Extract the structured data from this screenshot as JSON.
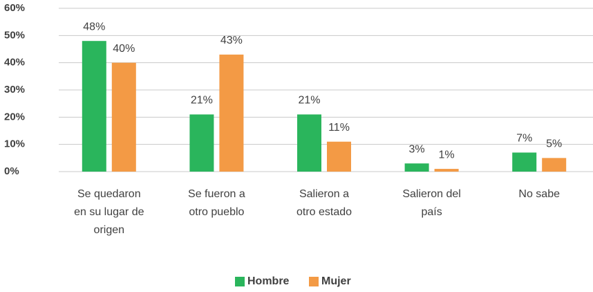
{
  "chart_data": {
    "type": "bar",
    "categories": [
      "Se quedaron en su lugar de origen",
      "Se fueron a otro pueblo",
      "Salieron a otro estado",
      "Salieron del país",
      "No sabe"
    ],
    "series": [
      {
        "name": "Hombre",
        "color": "#2ab55c",
        "values": [
          48,
          21,
          21,
          3,
          7
        ],
        "value_labels": [
          "48%",
          "21%",
          "21%",
          "3%",
          "7%"
        ]
      },
      {
        "name": "Mujer",
        "color": "#f39a45",
        "values": [
          40,
          43,
          11,
          1,
          5
        ],
        "value_labels": [
          "40%",
          "43%",
          "11%",
          "1%",
          "5%"
        ]
      }
    ],
    "ylim": [
      0,
      60
    ],
    "yticks": [
      {
        "value": 0,
        "label": "0%"
      },
      {
        "value": 10,
        "label": "10%"
      },
      {
        "value": 20,
        "label": "20%"
      },
      {
        "value": 30,
        "label": "30%"
      },
      {
        "value": 40,
        "label": "40%"
      },
      {
        "value": 50,
        "label": "50%"
      },
      {
        "value": 60,
        "label": "60%"
      }
    ],
    "grid": true,
    "legend": "bottom"
  }
}
